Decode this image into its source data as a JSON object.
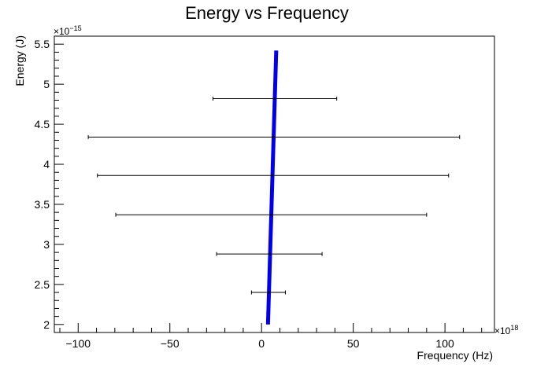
{
  "chart_data": {
    "type": "scatter",
    "title": "Energy vs Frequency",
    "xlabel": "Frequency (Hz)",
    "ylabel": "Energy (J)",
    "x_multiplier_base": "×10",
    "x_multiplier_exp": "18",
    "y_multiplier_base": "×10",
    "y_multiplier_exp": "−15",
    "xlim": [
      -113,
      127
    ],
    "ylim": [
      1.9,
      5.6
    ],
    "x_ticks": [
      -100,
      -50,
      0,
      50,
      100
    ],
    "x_tick_labels": [
      "−100",
      "−50",
      "0",
      "50",
      "100"
    ],
    "y_ticks": [
      2,
      2.5,
      3,
      3.5,
      4,
      4.5,
      5,
      5.5
    ],
    "y_tick_labels": [
      "2",
      "2.5",
      "3",
      "3.5",
      "4",
      "4.5",
      "5",
      "5.5"
    ],
    "points": [
      {
        "x": 4,
        "y": 2.4,
        "xerr_low": -5.5,
        "xerr_high": 13
      },
      {
        "x": 4.5,
        "y": 2.88,
        "xerr_low": -24.5,
        "xerr_high": 33
      },
      {
        "x": 5.2,
        "y": 3.37,
        "xerr_low": -79.5,
        "xerr_high": 90
      },
      {
        "x": 5.8,
        "y": 3.86,
        "xerr_low": -89.5,
        "xerr_high": 102
      },
      {
        "x": 6.3,
        "y": 4.34,
        "xerr_low": -94.5,
        "xerr_high": 108
      },
      {
        "x": 6.9,
        "y": 4.82,
        "xerr_low": -26.5,
        "xerr_high": 41
      }
    ],
    "fit_line": {
      "x": [
        3.5,
        8
      ],
      "y": [
        2.0,
        5.42
      ],
      "color": "#0000ee"
    },
    "grid": false,
    "legend": "none"
  }
}
